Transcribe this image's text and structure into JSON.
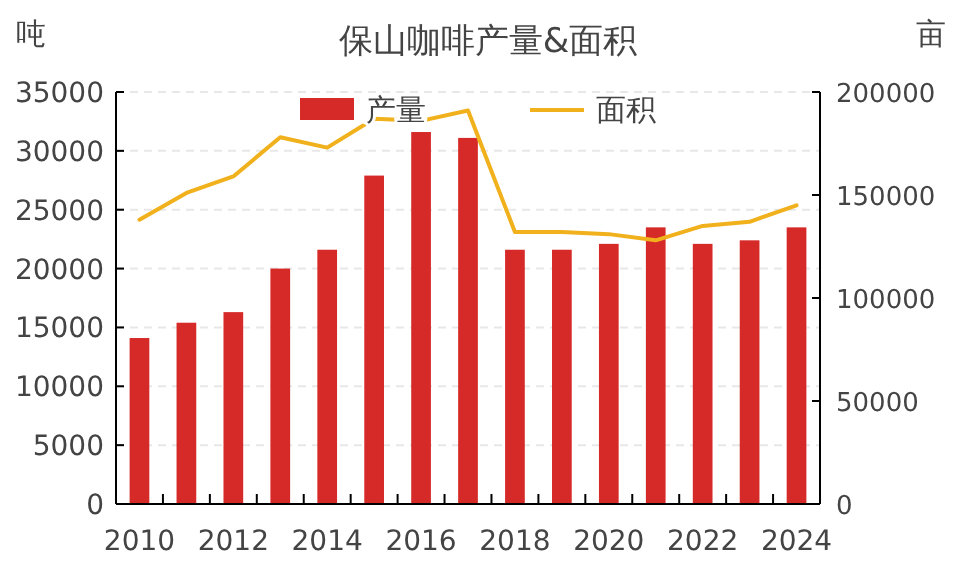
{
  "chart_data": {
    "type": "bar",
    "title": "保山咖啡产量&面积",
    "ylabel": "吨",
    "y2label": "亩",
    "categories": [
      "2010",
      null,
      "2012",
      null,
      "2014",
      null,
      "2016",
      null,
      "2018",
      null,
      "2020",
      null,
      "2022",
      null,
      "2024"
    ],
    "series": [
      {
        "name": "产量",
        "color": "#d62a28",
        "values": [
          14100,
          15400,
          16300,
          20000,
          21600,
          27900,
          31600,
          31100,
          21600,
          21600,
          22100,
          23500,
          22100,
          22400,
          23500
        ]
      },
      {
        "name": "面积",
        "type": "line",
        "axis": "y2",
        "color": "#f0b11c",
        "values": [
          138000,
          151000,
          159000,
          178000,
          173000,
          187000,
          186000,
          191000,
          132000,
          132000,
          131000,
          128000,
          135000,
          137000,
          145000
        ]
      }
    ],
    "ylim": [
      0,
      35000
    ],
    "yticks": [
      0,
      5000,
      10000,
      15000,
      20000,
      25000,
      30000,
      35000
    ],
    "y2lim": [
      0,
      200000
    ],
    "y2ticks": [
      0,
      50000,
      100000,
      150000,
      200000
    ],
    "grid": "y",
    "legend": "top"
  }
}
